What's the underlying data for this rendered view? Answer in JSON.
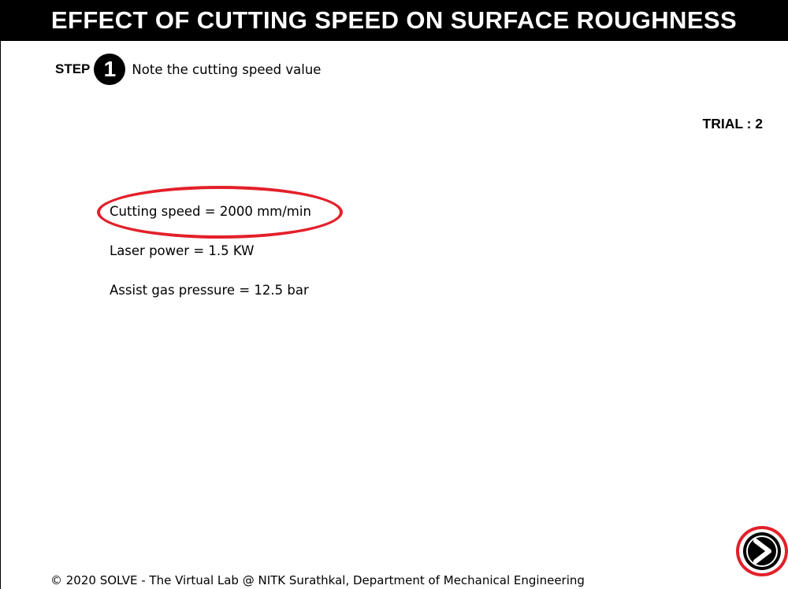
{
  "header": {
    "title": "EFFECT OF CUTTING SPEED ON SURFACE ROUGHNESS"
  },
  "step": {
    "label": "STEP",
    "number": "1",
    "instruction": "Note the cutting speed value"
  },
  "trial": {
    "text": "TRIAL : 2"
  },
  "parameters": [
    {
      "text": "Cutting speed = 2000 mm/min",
      "highlighted": true
    },
    {
      "text": "Laser power = 1.5 KW",
      "highlighted": false
    },
    {
      "text": "Assist gas pressure = 12.5 bar",
      "highlighted": false
    }
  ],
  "navigation": {
    "next_icon": "play-next-icon"
  },
  "footer": {
    "text": "© 2020 SOLVE - The Virtual Lab @ NITK Surathkal, Department of Mechanical Engineering"
  },
  "colors": {
    "header_background": "#000000",
    "header_text": "#ffffff",
    "highlight": "#e3202a"
  }
}
